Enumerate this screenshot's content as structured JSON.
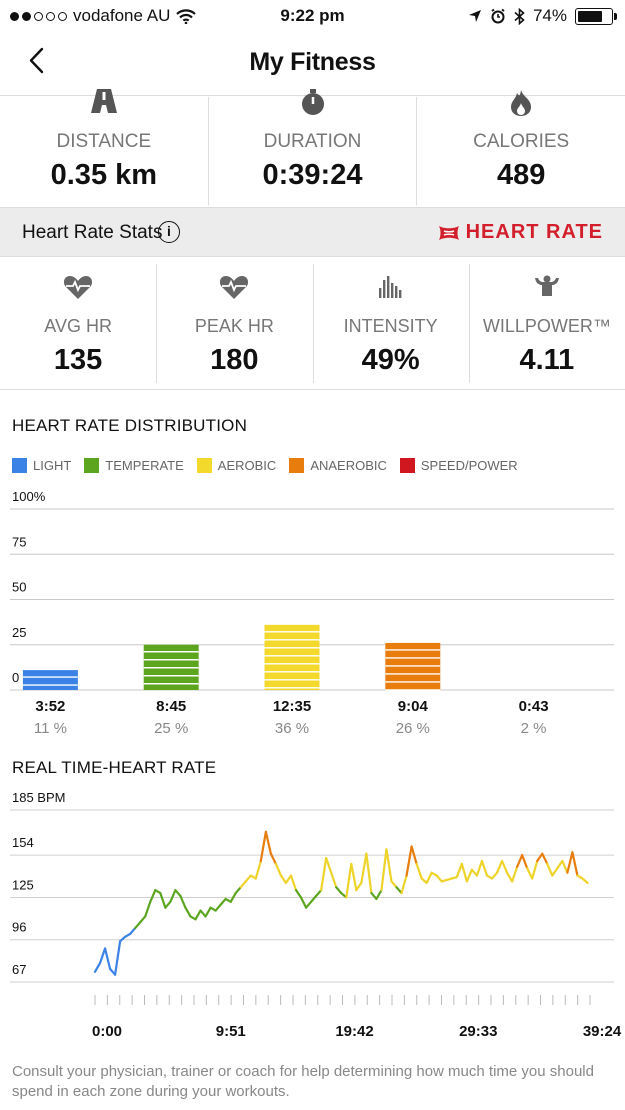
{
  "status_bar": {
    "carrier": "vodafone AU",
    "time": "9:22 pm",
    "battery": "74%",
    "battery_level": 0.74
  },
  "nav": {
    "title": "My Fitness",
    "back_icon": "chevron-left-icon"
  },
  "summary": [
    {
      "label": "DISTANCE",
      "value": "0.35 km",
      "icon": "distance-icon"
    },
    {
      "label": "DURATION",
      "value": "0:39:24",
      "icon": "stopwatch-icon"
    },
    {
      "label": "CALORIES",
      "value": "489",
      "icon": "flame-icon"
    }
  ],
  "hr_header": {
    "title": "Heart Rate Stats",
    "info": "i",
    "brand": "HEART RATE"
  },
  "hr_stats": [
    {
      "label": "AVG HR",
      "value": "135",
      "icon": "heart-pulse-icon"
    },
    {
      "label": "PEAK HR",
      "value": "180",
      "icon": "heart-pulse-icon"
    },
    {
      "label": "INTENSITY",
      "value": "49%",
      "icon": "bars-icon"
    },
    {
      "label": "WILLPOWER™",
      "value": "4.11",
      "icon": "strength-icon"
    }
  ],
  "distribution": {
    "title": "HEART RATE DISTRIBUTION",
    "legend": [
      {
        "name": "LIGHT",
        "color": "#3b82e6"
      },
      {
        "name": "TEMPERATE",
        "color": "#5ba51f"
      },
      {
        "name": "AEROBIC",
        "color": "#f2d92c"
      },
      {
        "name": "ANAEROBIC",
        "color": "#e87d0d"
      },
      {
        "name": "SPEED/POWER",
        "color": "#d0161e"
      }
    ]
  },
  "realtime": {
    "title": "REAL TIME-HEART RATE"
  },
  "footer": "Consult your physician, trainer or coach for help determining how much time you should spend in each zone during your workouts.",
  "chart_data": [
    {
      "type": "bar",
      "title": "HEART RATE DISTRIBUTION",
      "categories": [
        "LIGHT",
        "TEMPERATE",
        "AEROBIC",
        "ANAEROBIC",
        "SPEED/POWER"
      ],
      "values": [
        11,
        25,
        36,
        26,
        2
      ],
      "colors": [
        "#3b82e6",
        "#5ba51f",
        "#f2d92c",
        "#e87d0d",
        "#d0161e"
      ],
      "times": [
        "3:52",
        "8:45",
        "12:35",
        "9:04",
        "0:43"
      ],
      "percent_labels": [
        "11 %",
        "25 %",
        "36 %",
        "26 %",
        "2 %"
      ],
      "y_ticks": [
        "100%",
        "75",
        "50",
        "25",
        "0"
      ],
      "ylim": [
        0,
        100
      ],
      "grid": true
    },
    {
      "type": "line",
      "title": "REAL TIME-HEART RATE",
      "y_ticks": [
        "185 BPM",
        "154",
        "125",
        "96",
        "67"
      ],
      "ylim": [
        67,
        185
      ],
      "x_ticks": [
        "0:00",
        "9:51",
        "19:42",
        "29:33",
        "39:24"
      ],
      "xlim_minutes": [
        0,
        39.4
      ],
      "grid": true,
      "x_minutes": [
        0.0,
        0.4,
        0.8,
        1.2,
        1.6,
        2.0,
        2.4,
        2.8,
        3.2,
        3.6,
        4.0,
        4.4,
        4.8,
        5.2,
        5.6,
        6.0,
        6.4,
        6.8,
        7.2,
        7.6,
        8.0,
        8.4,
        8.8,
        9.2,
        9.6,
        10.0,
        10.4,
        10.8,
        11.2,
        11.6,
        12.0,
        12.4,
        12.8,
        13.2,
        13.6,
        14.0,
        14.4,
        14.8,
        15.2,
        15.6,
        16.0,
        16.4,
        16.8,
        17.2,
        17.6,
        18.0,
        18.4,
        18.8,
        19.2,
        19.6,
        20.0,
        20.4,
        20.8,
        21.2,
        21.6,
        22.0,
        22.4,
        22.8,
        23.2,
        23.6,
        24.0,
        24.4,
        24.8,
        25.2,
        25.6,
        26.0,
        26.4,
        26.8,
        27.2,
        27.6,
        28.0,
        28.4,
        28.8,
        29.2,
        29.6,
        30.0,
        30.4,
        30.8,
        31.2,
        31.6,
        32.0,
        32.4,
        32.8,
        33.2,
        33.6,
        34.0,
        34.4,
        34.8,
        35.2,
        35.6,
        36.0,
        36.4,
        36.8,
        37.2,
        37.6,
        38.0,
        38.4,
        38.8,
        39.2
      ],
      "bpm": [
        74,
        80,
        90,
        76,
        72,
        95,
        98,
        100,
        104,
        108,
        112,
        122,
        130,
        128,
        118,
        122,
        130,
        126,
        118,
        112,
        110,
        116,
        112,
        118,
        116,
        120,
        124,
        122,
        128,
        132,
        136,
        140,
        138,
        150,
        170,
        155,
        148,
        140,
        135,
        140,
        130,
        125,
        118,
        122,
        126,
        130,
        152,
        142,
        132,
        128,
        125,
        148,
        130,
        135,
        155,
        128,
        124,
        130,
        158,
        136,
        132,
        128,
        140,
        160,
        148,
        138,
        135,
        142,
        140,
        136,
        137,
        138,
        139,
        148,
        136,
        144,
        140,
        150,
        140,
        138,
        142,
        150,
        142,
        136,
        146,
        154,
        145,
        138,
        150,
        155,
        148,
        140,
        145,
        150,
        142,
        156,
        140,
        138,
        135
      ]
    }
  ]
}
